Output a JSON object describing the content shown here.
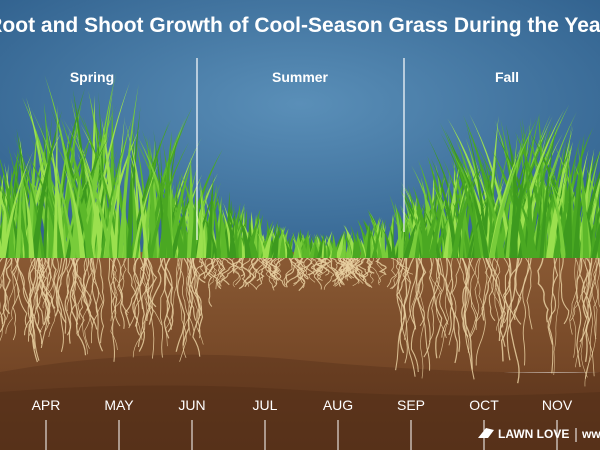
{
  "header": {
    "title": "Root and Shoot Growth of Cool-Season Grass During the Year"
  },
  "seasons": [
    "Spring",
    "Summer",
    "Fall"
  ],
  "months": [
    "APR",
    "MAY",
    "JUN",
    "JUL",
    "AUG",
    "SEP",
    "OCT",
    "NOV"
  ],
  "logo": {
    "brand": "LAWN LOVE",
    "site": "www"
  }
}
